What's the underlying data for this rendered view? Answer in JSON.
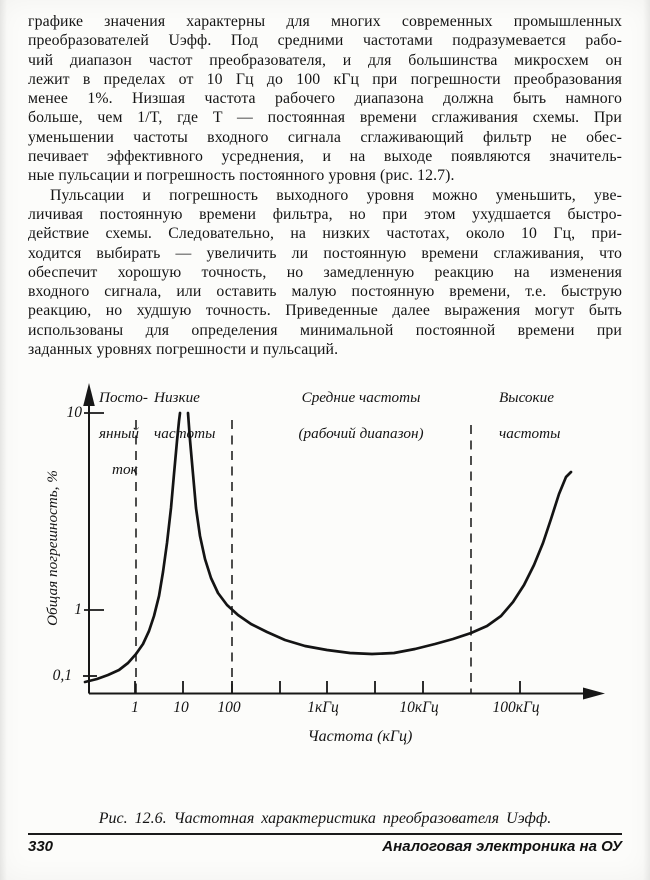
{
  "document": {
    "paragraphs": [
      {
        "indent": false,
        "lines": [
          "графике значения характерны для многих современных промышленных",
          "преобразователей Uэфф. Под средними частотами подразумевается рабо-",
          "чий диапазон частот преобразователя, и для большинства микросхем он",
          "лежит в пределах от 10 Гц до 100 кГц при погрешности преобразования",
          "менее 1%. Низшая частота рабочего диапазона должна быть намного",
          "больше, чем 1/T, где T — постоянная времени сглаживания схемы. При",
          "уменьшении частоты входного сигнала сглаживающий фильтр не обес-",
          "печивает эффективного усреднения, и на выходе появляются значитель-",
          "ные пульсации и погрешность постоянного уровня (рис. 12.7)."
        ]
      },
      {
        "indent": true,
        "lines": [
          "Пульсации и погрешность выходного уровня можно уменьшить, уве-",
          "личивая постоянную времени фильтра, но при этом ухудшается быстро-",
          "действие схемы. Следовательно, на низких частотах, около 10 Гц, при-",
          "ходится выбирать — увеличить ли постоянную времени сглаживания, что",
          "обеспечит хорошую точность, но замедленную реакцию на изменения",
          "входного сигнала, или оставить малую постоянную времени, т.е. быструю",
          "реакцию, но худшую точность. Приведенные далее выражения могут быть",
          "использованы для определения минимальной постоянной времени при",
          "заданных уровнях погрешности и пульсаций."
        ]
      }
    ]
  },
  "figure": {
    "region_labels": {
      "dc": [
        "Посто-",
        "янный",
        "ток"
      ],
      "low": [
        "Низкие",
        "частоты"
      ],
      "mid": [
        "Средние частоты",
        "(рабочий диапазон)"
      ],
      "high": [
        "Высокие",
        "частоты"
      ]
    },
    "ylabel": "Общая погрешность, %",
    "xlabel": "Частота (кГц)",
    "y_ticks": [
      "10",
      "1",
      "0,1"
    ],
    "x_ticks": [
      "1",
      "10",
      "100",
      "1кГц",
      "10кГц",
      "100кГц"
    ],
    "caption": "Рис. 12.6. Частотная характеристика преобразователя Uэфф."
  },
  "footer": {
    "page_number": "330",
    "running_title": "Аналоговая электроника на ОУ"
  },
  "chart_data": {
    "type": "line",
    "title": "Частотная характеристика преобразователя Uэфф",
    "xlabel": "Частота (кГц)",
    "ylabel": "Общая погрешность, %",
    "x_scale": "log",
    "y_scale": "log",
    "x_tick_labels": [
      "1",
      "10",
      "100",
      "1кГц",
      "10кГц",
      "100кГц"
    ],
    "y_tick_labels": [
      "10",
      "1",
      "0,1"
    ],
    "ylim_pct": [
      0.1,
      10
    ],
    "series": [
      {
        "name": "Общая погрешность",
        "x_hz": [
          0.3,
          1,
          2,
          4,
          6,
          8,
          10,
          13,
          20,
          40,
          100,
          300,
          1000,
          3000,
          10000,
          40000,
          100000,
          200000,
          300000
        ],
        "error_pct": [
          0.09,
          0.15,
          0.25,
          0.6,
          1.8,
          6,
          10,
          6,
          2,
          1.1,
          0.8,
          0.35,
          0.27,
          0.26,
          0.3,
          0.55,
          1.2,
          2.5,
          4.5
        ]
      }
    ],
    "peak_note": "около 10 Гц кривая уходит за верхнюю границу графика (>10 %)",
    "dashed_boundaries_hz": [
      1,
      100,
      40000
    ],
    "regions": [
      {
        "label": "Постоянный ток",
        "range_hz": "< 1"
      },
      {
        "label": "Низкие частоты",
        "range_hz": "1 – 100"
      },
      {
        "label": "Средние частоты (рабочий диапазон)",
        "range_hz": "100 – 40 000"
      },
      {
        "label": "Высокие частоты",
        "range_hz": "> 40 000"
      }
    ],
    "grid": false,
    "legend": false
  }
}
